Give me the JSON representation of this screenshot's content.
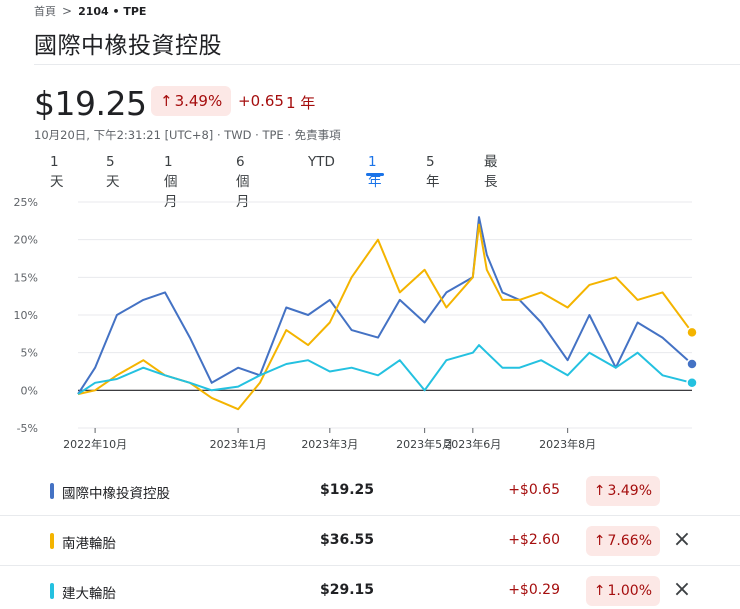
{
  "breadcrumb": {
    "home": "首頁",
    "current": "2104 • TPE"
  },
  "title": "國際中橡投資控股",
  "price": "$19.25",
  "change": {
    "arrow": "↑",
    "percent": "3.49%",
    "absolute": "+0.65",
    "period": "1 年"
  },
  "meta": "10月20日, 下午2:31:21 [UTC+8] · TWD · TPE · 免責事項",
  "tabs": [
    {
      "label": "1 天",
      "active": false
    },
    {
      "label": "5 天",
      "active": false
    },
    {
      "label": "1 個月",
      "active": false
    },
    {
      "label": "6 個月",
      "active": false
    },
    {
      "label": "YTD",
      "active": false
    },
    {
      "label": "1 年",
      "active": true
    },
    {
      "label": "5 年",
      "active": false
    },
    {
      "label": "最長",
      "active": false
    }
  ],
  "colors": {
    "series_blue": "#4472c4",
    "series_yellow": "#f4b400",
    "series_cyan": "#24c1e0",
    "negative_bg": "#fce8e6",
    "negative_text": "#a50e0e",
    "accent": "#1a73e8"
  },
  "chart_data": {
    "type": "line",
    "y_unit": "%",
    "ylim": [
      -5,
      25
    ],
    "y_ticks": [
      "25%",
      "20%",
      "15%",
      "10%",
      "5%",
      "0%",
      "-5%"
    ],
    "y_tick_values": [
      25,
      20,
      15,
      10,
      5,
      0,
      -5
    ],
    "x_ticks": [
      "2022年10月",
      "2023年1月",
      "2023年3月",
      "2023年5月",
      "2023年6月",
      "2023年8月"
    ],
    "x_tick_dates": [
      "2022-10-01",
      "2023-01-01",
      "2023-03-01",
      "2023-05-01",
      "2023-06-01",
      "2023-08-01"
    ],
    "x_range": [
      "2022-09-20",
      "2023-10-20"
    ],
    "grid": "horizontal",
    "series": [
      {
        "name": "國際中橡投資控股",
        "color": "#4472c4",
        "x": [
          "2022-09-20",
          "2022-10-01",
          "2022-10-15",
          "2022-11-01",
          "2022-11-15",
          "2022-12-01",
          "2022-12-15",
          "2023-01-01",
          "2023-01-15",
          "2023-02-01",
          "2023-02-15",
          "2023-03-01",
          "2023-03-15",
          "2023-04-01",
          "2023-04-15",
          "2023-05-01",
          "2023-05-15",
          "2023-06-01",
          "2023-06-05",
          "2023-06-10",
          "2023-06-20",
          "2023-07-01",
          "2023-07-15",
          "2023-08-01",
          "2023-08-15",
          "2023-09-01",
          "2023-09-15",
          "2023-10-01",
          "2023-10-20"
        ],
        "y": [
          -0.5,
          3,
          10,
          12,
          13,
          7,
          1,
          3,
          2,
          11,
          10,
          12,
          8,
          7,
          12,
          9,
          13,
          15,
          23,
          18,
          13,
          12,
          9,
          4,
          10,
          3,
          9,
          7,
          3.5
        ]
      },
      {
        "name": "南港輪胎",
        "color": "#f4b400",
        "x": [
          "2022-09-20",
          "2022-10-01",
          "2022-10-15",
          "2022-11-01",
          "2022-11-15",
          "2022-12-01",
          "2022-12-15",
          "2023-01-01",
          "2023-01-15",
          "2023-02-01",
          "2023-02-15",
          "2023-03-01",
          "2023-03-15",
          "2023-04-01",
          "2023-04-15",
          "2023-05-01",
          "2023-05-15",
          "2023-06-01",
          "2023-06-05",
          "2023-06-10",
          "2023-06-20",
          "2023-07-01",
          "2023-07-15",
          "2023-08-01",
          "2023-08-15",
          "2023-09-01",
          "2023-09-15",
          "2023-10-01",
          "2023-10-20"
        ],
        "y": [
          -0.5,
          0,
          2,
          4,
          2,
          1,
          -1,
          -2.5,
          1,
          8,
          6,
          9,
          15,
          20,
          13,
          16,
          11,
          15,
          22,
          16,
          12,
          12,
          13,
          11,
          14,
          15,
          12,
          13,
          7.7
        ]
      },
      {
        "name": "建大輪胎",
        "color": "#24c1e0",
        "x": [
          "2022-09-20",
          "2022-10-01",
          "2022-10-15",
          "2022-11-01",
          "2022-11-15",
          "2022-12-01",
          "2022-12-15",
          "2023-01-01",
          "2023-01-15",
          "2023-02-01",
          "2023-02-15",
          "2023-03-01",
          "2023-03-15",
          "2023-04-01",
          "2023-04-15",
          "2023-05-01",
          "2023-05-15",
          "2023-06-01",
          "2023-06-05",
          "2023-06-10",
          "2023-06-20",
          "2023-07-01",
          "2023-07-15",
          "2023-08-01",
          "2023-08-15",
          "2023-09-01",
          "2023-09-15",
          "2023-10-01",
          "2023-10-20"
        ],
        "y": [
          -0.5,
          1,
          1.5,
          3,
          2,
          1,
          0,
          0.5,
          2,
          3.5,
          4,
          2.5,
          3,
          2,
          4,
          0,
          4,
          5,
          6,
          5,
          3,
          3,
          4,
          2,
          5,
          3,
          5,
          2,
          1
        ]
      }
    ]
  },
  "comparison": [
    {
      "name": "國際中橡投資控股",
      "color": "#4472c4",
      "price": "$19.25",
      "abs": "+$0.65",
      "arrow": "↑",
      "pct": "3.49%",
      "removable": false
    },
    {
      "name": "南港輪胎",
      "color": "#f4b400",
      "price": "$36.55",
      "abs": "+$2.60",
      "arrow": "↑",
      "pct": "7.66%",
      "removable": true
    },
    {
      "name": "建大輪胎",
      "color": "#24c1e0",
      "price": "$29.15",
      "abs": "+$0.29",
      "arrow": "↑",
      "pct": "1.00%",
      "removable": true
    }
  ],
  "remove_icon": "×"
}
